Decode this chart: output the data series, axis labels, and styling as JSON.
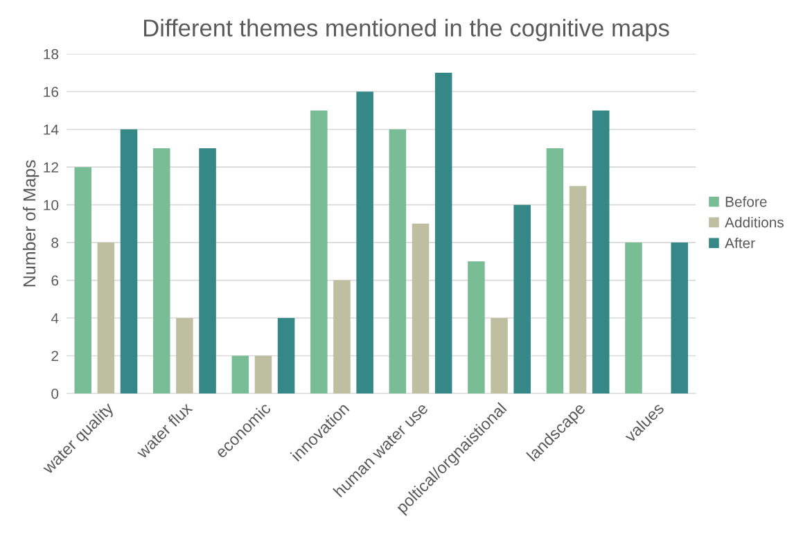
{
  "chart_data": {
    "type": "bar",
    "title": "Different themes mentioned in the cognitive maps",
    "ylabel": "Number of Maps",
    "categories": [
      "water quality",
      "water flux",
      "economic",
      "innovation",
      "human water use",
      "poltical/orgnaistional",
      "landscape",
      "values"
    ],
    "series": [
      {
        "name": "Before",
        "color": "#78bd96",
        "values": [
          12,
          13,
          2,
          15,
          14,
          7,
          13,
          8
        ]
      },
      {
        "name": "Additions",
        "color": "#bebea1",
        "values": [
          8,
          4,
          2,
          6,
          9,
          4,
          11,
          0
        ]
      },
      {
        "name": "After",
        "color": "#368888",
        "values": [
          14,
          13,
          4,
          16,
          17,
          10,
          15,
          8
        ]
      }
    ],
    "ylim": [
      0,
      18
    ],
    "yticks": [
      0,
      2,
      4,
      6,
      8,
      10,
      12,
      14,
      16,
      18
    ],
    "grid": "y",
    "legend": "right"
  }
}
